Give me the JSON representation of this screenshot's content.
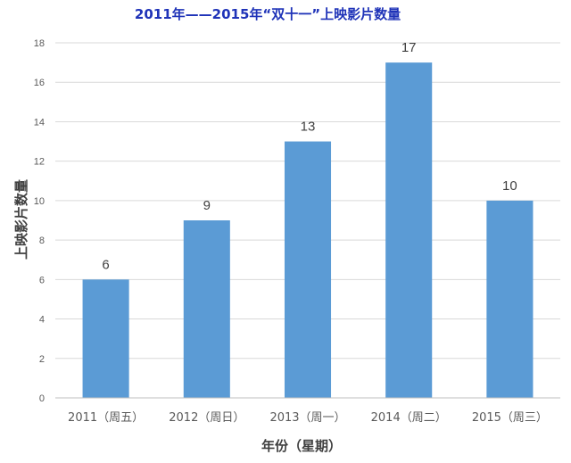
{
  "chart_data": {
    "type": "bar",
    "title": "2011年——2015年“双十一”上映影片数量",
    "xlabel": "年份（星期）",
    "ylabel": "上映影片数量",
    "categories": [
      "2011（周五）",
      "2012（周日）",
      "2013（周一）",
      "2014（周二）",
      "2015（周三）"
    ],
    "values": [
      6,
      9,
      13,
      17,
      10
    ],
    "ylim": [
      0,
      18
    ],
    "yticks": [
      0,
      2,
      4,
      6,
      8,
      10,
      12,
      14,
      16,
      18
    ],
    "grid": true,
    "legend": "none",
    "bar_color": "#5b9bd5"
  }
}
